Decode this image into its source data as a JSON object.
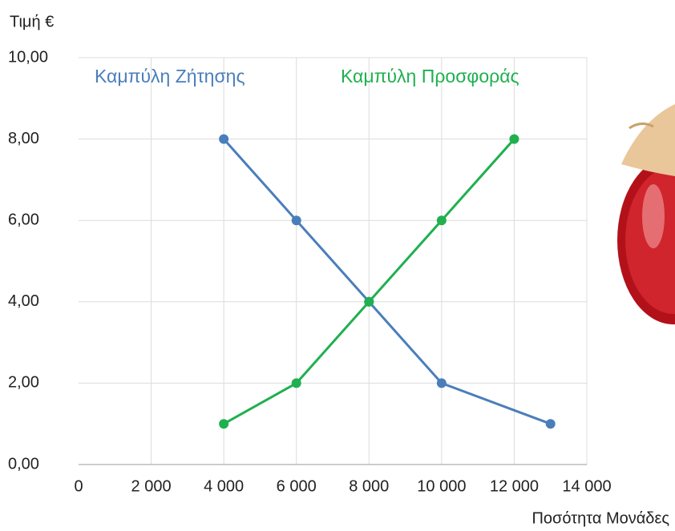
{
  "chart_data": {
    "type": "line",
    "y_label": "Τιμή  €",
    "x_label": "Ποσότητα  Μονάδες",
    "xlim": [
      0,
      14000
    ],
    "xticks": [
      0,
      {
        "value": 2000,
        "label": "2 000"
      },
      {
        "value": 4000,
        "label": "4 000"
      },
      {
        "value": 6000,
        "label": "6 000"
      },
      {
        "value": 8000,
        "label": "8 000"
      },
      {
        "value": 10000,
        "label": "10 000"
      },
      {
        "value": 12000,
        "label": "12 000"
      },
      {
        "value": 14000,
        "label": "14 000"
      }
    ],
    "ylim": [
      0,
      10
    ],
    "yticks": [
      {
        "value": 0,
        "label": "0,00"
      },
      {
        "value": 2,
        "label": "2,00"
      },
      {
        "value": 4,
        "label": "4,00"
      },
      {
        "value": 6,
        "label": "6,00"
      },
      {
        "value": 8,
        "label": "8,00"
      },
      {
        "value": 10,
        "label": "10,00"
      }
    ],
    "grid": true,
    "series": [
      {
        "name": "Καμπύλη Ζήτησης",
        "color": "#4a7ebb",
        "x": [
          4000,
          6000,
          8000,
          10000,
          13000
        ],
        "values": [
          8,
          6,
          4,
          2,
          1
        ]
      },
      {
        "name": "Καμπύλη Προσφοράς",
        "color": "#1fb04f",
        "x": [
          4000,
          6000,
          8000,
          10000,
          12000
        ],
        "values": [
          1,
          2,
          4,
          6,
          8
        ]
      }
    ]
  }
}
